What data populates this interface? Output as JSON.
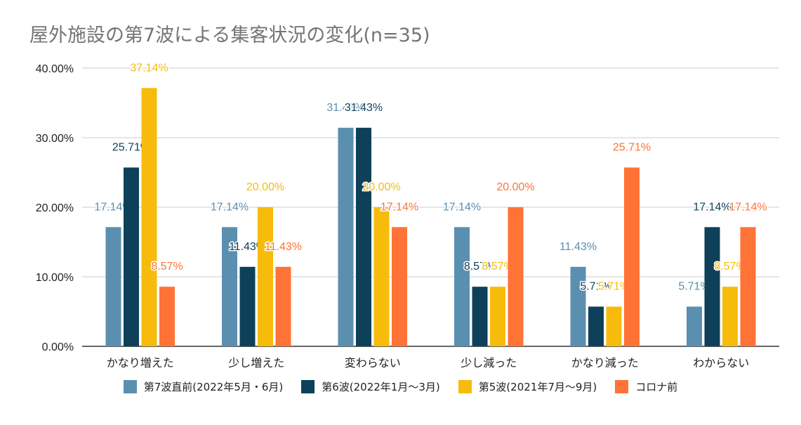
{
  "chart_data": {
    "type": "bar",
    "title": "屋外施設の第7波による集客状況の変化(n=35)",
    "xlabel": "",
    "ylabel": "",
    "ylim": [
      0,
      40
    ],
    "y_ticks": [
      "0.00%",
      "10.00%",
      "20.00%",
      "30.00%",
      "40.00%"
    ],
    "y_tick_values": [
      0,
      10,
      20,
      30,
      40
    ],
    "grid": true,
    "legend_position": "bottom",
    "categories": [
      "かなり増えた",
      "少し増えた",
      "変わらない",
      "少し減った",
      "かなり減った",
      "わからない"
    ],
    "series": [
      {
        "name": "第7波直前(2022年5月・6月)",
        "color": "#5b8fb0",
        "values": [
          17.14,
          17.14,
          31.43,
          17.14,
          11.43,
          5.71
        ],
        "labels": [
          "17.14%",
          "17.14%",
          "31.43%",
          "17.14%",
          "11.43%",
          "5.71%"
        ]
      },
      {
        "name": "第6波(2022年1月〜3月)",
        "color": "#0e4159",
        "values": [
          25.71,
          11.43,
          31.43,
          8.57,
          5.71,
          17.14
        ],
        "labels": [
          "25.71%",
          "11.43%",
          "31.43%",
          "8.57%",
          "5.71%",
          "17.14%"
        ]
      },
      {
        "name": "第5波(2021年7月〜9月)",
        "color": "#f7bc0b",
        "values": [
          37.14,
          20.0,
          20.0,
          8.57,
          5.71,
          8.57
        ],
        "labels": [
          "37.14%",
          "20.00%",
          "20.00%",
          "8.57%",
          "5.71%",
          "8.57%"
        ]
      },
      {
        "name": "コロナ前",
        "color": "#ff7336",
        "values": [
          8.57,
          11.43,
          17.14,
          20.0,
          25.71,
          17.14
        ],
        "labels": [
          "8.57%",
          "11.43%",
          "17.14%",
          "20.00%",
          "25.71%",
          "17.14%"
        ]
      }
    ]
  }
}
